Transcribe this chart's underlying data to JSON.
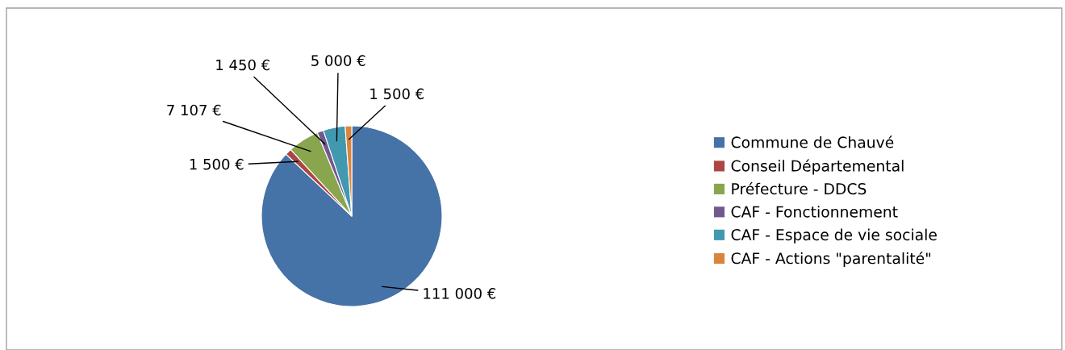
{
  "chart_data": {
    "type": "pie",
    "categories": [
      "Commune de Chauvé",
      "Conseil Départemental",
      "Préfecture - DDCS",
      "CAF - Fonctionnement",
      "CAF - Espace de vie sociale",
      "CAF - Actions \"parentalité\""
    ],
    "values": [
      111000,
      1500,
      7107,
      1450,
      5000,
      1500
    ],
    "colors": [
      "#4572a7",
      "#aa4643",
      "#89a54e",
      "#71588f",
      "#4198af",
      "#db843d"
    ],
    "value_labels": [
      "111 000 €",
      "1 500 €",
      "7 107 €",
      "1 450 €",
      "5 000 €",
      "1 500 €"
    ],
    "legend": "right"
  }
}
